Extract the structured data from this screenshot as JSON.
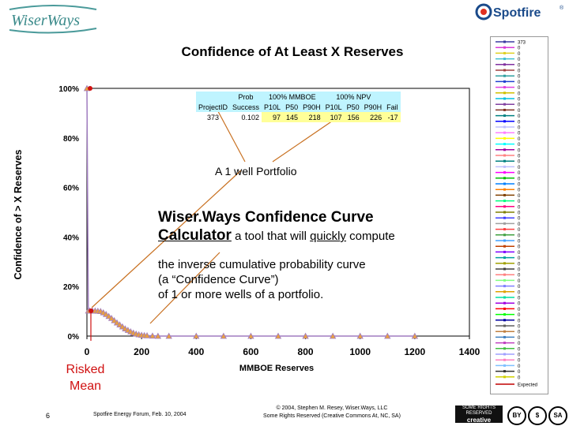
{
  "header": {
    "left_logo_text": "WiserWays",
    "right_logo_text": "Spotfire",
    "right_logo_mark": "®"
  },
  "chart_data": {
    "type": "line",
    "title": "Confidence of At Least X Reserves",
    "xlabel": "MMBOE Reserves",
    "ylabel": "Confidence of > X Reserves",
    "xlim": [
      0,
      1400
    ],
    "ylim": [
      0,
      100
    ],
    "x_ticks": [
      "0",
      "200",
      "400",
      "600",
      "800",
      "1000",
      "1200",
      "1400"
    ],
    "y_ticks": [
      "0%",
      "20%",
      "40%",
      "60%",
      "80%",
      "100%"
    ],
    "grid": false,
    "legend_placement": "right",
    "series": [
      {
        "name": "373",
        "color": "#a07cc0",
        "x": [
          0,
          5,
          10,
          20,
          30,
          40,
          50,
          60,
          70,
          80,
          90,
          100,
          110,
          120,
          130,
          140,
          150,
          160,
          170,
          180,
          190,
          200,
          210,
          220,
          240,
          260,
          300,
          400,
          500,
          600,
          700,
          800,
          900,
          1000,
          1100,
          1200
        ],
        "y": [
          100,
          10.2,
          10.2,
          10.2,
          10.2,
          10.1,
          10,
          9.5,
          8.8,
          8.0,
          7.2,
          6.3,
          5.4,
          4.6,
          3.8,
          3.0,
          2.4,
          1.8,
          1.3,
          0.9,
          0.6,
          0.4,
          0.3,
          0.2,
          0.1,
          0,
          0,
          0,
          0,
          0,
          0,
          0,
          0,
          0,
          0,
          0
        ]
      }
    ],
    "risked_mean": {
      "x": 15,
      "color": "#d01010"
    }
  },
  "summary_table": {
    "top_headers": [
      "Prob",
      "100% MMBOE",
      "100% NPV"
    ],
    "headers": [
      "ProjectID",
      "Success",
      "P10L",
      "P50",
      "P90H",
      "P10L",
      "P50",
      "P90H",
      "Fail"
    ],
    "row": [
      "373",
      "0.102",
      "97",
      "145",
      "218",
      "107",
      "156",
      "226",
      "-17"
    ]
  },
  "annotations": {
    "one_well": "A 1 well Portfolio",
    "calc_title_line1": "Wiser.Ways Confidence Curve",
    "calc_title_line2_bold": "Calculator",
    "calc_title_line2_a": " a tool that will ",
    "calc_title_line2_quickly": "quickly",
    "calc_title_line2_b": " compute",
    "calc_desc": [
      "the inverse cumulative probability curve",
      "(a “Confidence Curve”)",
      "of 1 or more wells of a portfolio."
    ],
    "risked_mean": [
      "Risked",
      "Mean"
    ]
  },
  "legend": {
    "top_label": "373",
    "zero_label": "0",
    "expected_label": "Expected",
    "colors": [
      "#3a3aa0",
      "#d83ad8",
      "#e0d020",
      "#40c0d0",
      "#8030a0",
      "#a04040",
      "#30a0a0",
      "#2040d0",
      "#e040e0",
      "#d0c000",
      "#00c0e0",
      "#8040a0",
      "#803020",
      "#008080",
      "#0000ff",
      "#c0c0ff",
      "#ff80ff",
      "#ffff00",
      "#00ffff",
      "#a000a0",
      "#ff8080",
      "#008080",
      "#c0c0ff",
      "#ff00ff",
      "#00c000",
      "#0080ff",
      "#ff8000",
      "#804000",
      "#00ff80",
      "#ff0080",
      "#808000",
      "#4040ff",
      "#a0a0a0",
      "#ff4040",
      "#40a040",
      "#40a0ff",
      "#c04000",
      "#8000ff",
      "#00a0a0",
      "#a0a000",
      "#404040",
      "#ff8080",
      "#80ff80",
      "#8080ff",
      "#e0a000",
      "#00e0a0",
      "#a000e0",
      "#ff0000",
      "#00ff00",
      "#0000a0",
      "#606060",
      "#c08040",
      "#4080c0",
      "#c040c0",
      "#40c040",
      "#a0a0ff",
      "#ff80c0",
      "#80c0ff",
      "#303030",
      "#d0d000"
    ],
    "expected_color": "#c00000"
  },
  "footer": {
    "page_number": "6",
    "event": "Spotfire Energy Forum, Feb. 10, 2004",
    "copyright_line1": "© 2004, Stephen M. Resey, Wiser.Ways, LLC",
    "copyright_line2": "Some Rights Reserved (Creative Commons At, NC, SA)",
    "cc_label": "creative commons",
    "cc_badge": "SOME RIGHTS RESERVED",
    "cc_icons": [
      "BY",
      "$",
      "SA"
    ]
  }
}
